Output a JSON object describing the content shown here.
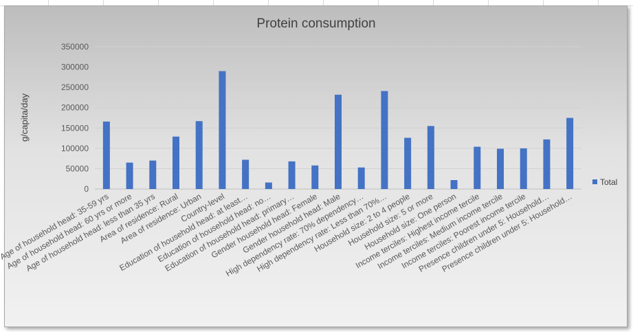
{
  "chart_data": {
    "type": "bar",
    "title": "Protein consumption",
    "xlabel": "",
    "ylabel": "g/capita/day",
    "ylim": [
      0,
      350000
    ],
    "yticks": [
      "0",
      "50000",
      "100000",
      "150000",
      "200000",
      "250000",
      "300000",
      "350000"
    ],
    "grid": true,
    "legend_position": "right",
    "bar_color": "#4472C4",
    "categories": [
      "Age of household head: 35-59 yrs",
      "Age of household head: 60 yrs or more",
      "Age of household head: less than 35 yrs",
      "Area of residence: Rural",
      "Area of residence: Urban",
      "Country-level",
      "Education of household head: at least…",
      "Education of household head: no…",
      "Education of household head: primary…",
      "Gender household head: Female",
      "Gender household head: Male",
      "High dependency rate: 70% dependency…",
      "High dependency rate: Less than 70%…",
      "Household size: 2 to 4 people",
      "Household size: 5 or more",
      "Household size: One person",
      "Income terciles: Highest income tercile",
      "Income terciles: Medium income tercile",
      "Income terciles: Poorest income tercile",
      "Presence children under 5: Household…",
      "Presence children under 5: Household…"
    ],
    "series": [
      {
        "name": "Total",
        "values": [
          166000,
          65000,
          70000,
          129000,
          167000,
          290000,
          72000,
          16000,
          68000,
          58000,
          232000,
          53000,
          241000,
          126000,
          155000,
          22000,
          104000,
          99000,
          100000,
          122000,
          175000
        ]
      }
    ]
  }
}
